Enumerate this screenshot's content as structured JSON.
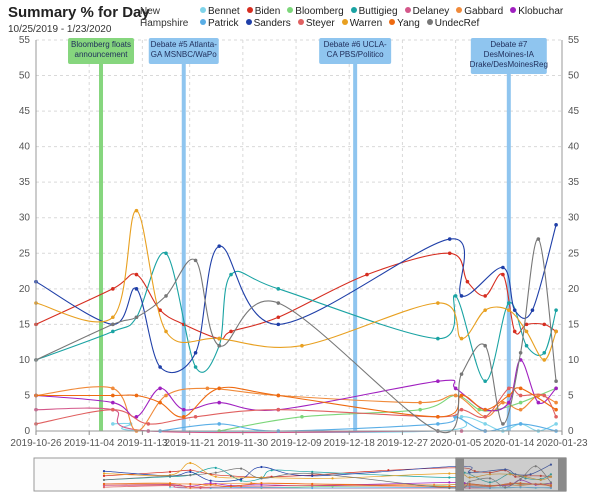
{
  "header": {
    "title": "Summary % for Day",
    "date_range": "10/25/2019 - 1/23/2020",
    "region": "New Hampshire"
  },
  "chart_data": {
    "type": "line",
    "title": "Summary % for Day",
    "subtitle": "10/25/2019 - 1/23/2020",
    "x_type": "date",
    "xlim": [
      "2019-10-26",
      "2020-01-23"
    ],
    "x_ticks": [
      "2019-10-26",
      "2019-11-04",
      "2019-11-13",
      "2019-11-21",
      "2019-11-30",
      "2019-12-09",
      "2019-12-18",
      "2019-12-27",
      "2020-01-05",
      "2020-01-14",
      "2020-01-23"
    ],
    "ylim": [
      0,
      55
    ],
    "y_ticks": [
      0,
      5,
      10,
      15,
      20,
      25,
      30,
      35,
      40,
      45,
      50,
      55
    ],
    "grid": true,
    "legend_position": "top",
    "annotations": [
      {
        "date": "2019-11-06",
        "label_lines": [
          "Bloomberg floats",
          "announcement"
        ],
        "color": "#86d67e"
      },
      {
        "date": "2019-11-20",
        "label_lines": [
          "Debate #5 Atlanta-",
          "GA MSNBC/WaPo"
        ],
        "color": "#8fc5ef"
      },
      {
        "date": "2019-12-19",
        "label_lines": [
          "Debate #6 UCLA-",
          "CA PBS/Politico"
        ],
        "color": "#8fc5ef"
      },
      {
        "date": "2020-01-14",
        "label_lines": [
          "Debate #7",
          "DesMoines-IA",
          "Drake/DesMoinesReg"
        ],
        "color": "#8fc5ef"
      }
    ],
    "series": [
      {
        "name": "Bennet",
        "color": "#7fd4ea",
        "points": [
          [
            "2019-11-08",
            1
          ],
          [
            "2019-11-11",
            1
          ],
          [
            "2019-11-14",
            0
          ],
          [
            "2020-01-02",
            0
          ],
          [
            "2020-01-06",
            2
          ],
          [
            "2020-01-10",
            1
          ],
          [
            "2020-01-13",
            0
          ],
          [
            "2020-01-16",
            1
          ],
          [
            "2020-01-19",
            0
          ],
          [
            "2020-01-22",
            1
          ]
        ]
      },
      {
        "name": "Biden",
        "color": "#d62d20",
        "points": [
          [
            "2019-10-26",
            15
          ],
          [
            "2019-11-08",
            20
          ],
          [
            "2019-11-12",
            22
          ],
          [
            "2019-11-16",
            17
          ],
          [
            "2019-11-20",
            15
          ],
          [
            "2019-11-26",
            13
          ],
          [
            "2019-11-28",
            14
          ],
          [
            "2019-12-06",
            16
          ],
          [
            "2019-12-21",
            22
          ],
          [
            "2020-01-04",
            25
          ],
          [
            "2020-01-07",
            21
          ],
          [
            "2020-01-10",
            19
          ],
          [
            "2020-01-13",
            22
          ],
          [
            "2020-01-15",
            14
          ],
          [
            "2020-01-17",
            15
          ],
          [
            "2020-01-20",
            15
          ],
          [
            "2020-01-22",
            14
          ]
        ]
      },
      {
        "name": "Bloomberg",
        "color": "#7cd67a",
        "points": [
          [
            "2019-11-26",
            0
          ],
          [
            "2019-12-10",
            2
          ],
          [
            "2019-12-30",
            3
          ],
          [
            "2020-01-05",
            5
          ],
          [
            "2020-01-09",
            3
          ],
          [
            "2020-01-12",
            3
          ],
          [
            "2020-01-16",
            4
          ],
          [
            "2020-01-19",
            5
          ],
          [
            "2020-01-22",
            6
          ]
        ]
      },
      {
        "name": "Buttigieg",
        "color": "#1aa3a3",
        "points": [
          [
            "2019-10-26",
            10
          ],
          [
            "2019-11-08",
            14
          ],
          [
            "2019-11-12",
            16
          ],
          [
            "2019-11-17",
            25
          ],
          [
            "2019-11-22",
            9
          ],
          [
            "2019-11-26",
            12
          ],
          [
            "2019-11-28",
            22
          ],
          [
            "2019-12-06",
            20
          ],
          [
            "2020-01-02",
            13
          ],
          [
            "2020-01-05",
            19
          ],
          [
            "2020-01-10",
            7
          ],
          [
            "2020-01-14",
            18
          ],
          [
            "2020-01-17",
            12
          ],
          [
            "2020-01-20",
            11
          ],
          [
            "2020-01-22",
            17
          ]
        ]
      },
      {
        "name": "Delaney",
        "color": "#d4578a",
        "points": [
          [
            "2019-10-26",
            3
          ],
          [
            "2019-11-08",
            3
          ],
          [
            "2019-11-14",
            0
          ],
          [
            "2020-01-02",
            0
          ],
          [
            "2020-01-06",
            0
          ],
          [
            "2020-01-10",
            0
          ]
        ]
      },
      {
        "name": "Gabbard",
        "color": "#f08a3a",
        "points": [
          [
            "2019-10-26",
            5
          ],
          [
            "2019-11-08",
            6
          ],
          [
            "2019-11-12",
            0
          ],
          [
            "2019-11-17",
            5
          ],
          [
            "2019-11-24",
            6
          ],
          [
            "2019-12-06",
            5
          ],
          [
            "2019-12-30",
            4
          ],
          [
            "2020-01-05",
            5
          ],
          [
            "2020-01-10",
            2
          ],
          [
            "2020-01-13",
            4
          ],
          [
            "2020-01-16",
            3
          ],
          [
            "2020-01-19",
            5
          ],
          [
            "2020-01-22",
            4
          ]
        ]
      },
      {
        "name": "Klobuchar",
        "color": "#a020c0",
        "points": [
          [
            "2019-10-26",
            5
          ],
          [
            "2019-11-08",
            4
          ],
          [
            "2019-11-12",
            2
          ],
          [
            "2019-11-16",
            6
          ],
          [
            "2019-11-20",
            3
          ],
          [
            "2019-11-26",
            4
          ],
          [
            "2019-12-06",
            3
          ],
          [
            "2020-01-02",
            7
          ],
          [
            "2020-01-05",
            6
          ],
          [
            "2020-01-10",
            3
          ],
          [
            "2020-01-14",
            4
          ],
          [
            "2020-01-16",
            10
          ],
          [
            "2020-01-19",
            4
          ],
          [
            "2020-01-22",
            6
          ]
        ]
      },
      {
        "name": "Patrick",
        "color": "#5aaee6",
        "points": [
          [
            "2019-11-16",
            0
          ],
          [
            "2019-11-26",
            1
          ],
          [
            "2019-12-06",
            0
          ],
          [
            "2020-01-02",
            1
          ],
          [
            "2020-01-05",
            2
          ],
          [
            "2020-01-10",
            0
          ],
          [
            "2020-01-16",
            1
          ],
          [
            "2020-01-22",
            0
          ]
        ]
      },
      {
        "name": "Sanders",
        "color": "#1f3fa8",
        "points": [
          [
            "2019-10-26",
            21
          ],
          [
            "2019-11-08",
            15
          ],
          [
            "2019-11-12",
            20
          ],
          [
            "2019-11-16",
            9
          ],
          [
            "2019-11-22",
            11
          ],
          [
            "2019-11-26",
            26
          ],
          [
            "2019-12-06",
            15
          ],
          [
            "2020-01-04",
            27
          ],
          [
            "2020-01-06",
            19
          ],
          [
            "2020-01-13",
            23
          ],
          [
            "2020-01-15",
            17
          ],
          [
            "2020-01-18",
            17
          ],
          [
            "2020-01-22",
            29
          ]
        ]
      },
      {
        "name": "Steyer",
        "color": "#e06060",
        "points": [
          [
            "2019-10-26",
            1
          ],
          [
            "2019-11-08",
            3
          ],
          [
            "2019-11-14",
            1
          ],
          [
            "2019-11-22",
            2
          ],
          [
            "2019-12-06",
            3
          ],
          [
            "2020-01-02",
            2
          ],
          [
            "2020-01-06",
            3
          ],
          [
            "2020-01-10",
            2
          ],
          [
            "2020-01-14",
            6
          ],
          [
            "2020-01-16",
            5
          ],
          [
            "2020-01-20",
            5
          ],
          [
            "2020-01-22",
            2
          ]
        ]
      },
      {
        "name": "Warren",
        "color": "#e8a020",
        "points": [
          [
            "2019-10-26",
            18
          ],
          [
            "2019-11-08",
            16
          ],
          [
            "2019-11-12",
            31
          ],
          [
            "2019-11-17",
            14
          ],
          [
            "2019-11-26",
            13
          ],
          [
            "2019-12-10",
            12
          ],
          [
            "2020-01-02",
            18
          ],
          [
            "2020-01-06",
            13
          ],
          [
            "2020-01-10",
            17
          ],
          [
            "2020-01-14",
            17
          ],
          [
            "2020-01-17",
            14
          ],
          [
            "2020-01-20",
            10
          ],
          [
            "2020-01-22",
            14
          ]
        ]
      },
      {
        "name": "Yang",
        "color": "#ee6a10",
        "points": [
          [
            "2019-10-26",
            5
          ],
          [
            "2019-11-08",
            5
          ],
          [
            "2019-11-12",
            5
          ],
          [
            "2019-11-16",
            4
          ],
          [
            "2019-11-20",
            2
          ],
          [
            "2019-11-26",
            6
          ],
          [
            "2019-12-06",
            5
          ],
          [
            "2020-01-02",
            2
          ],
          [
            "2020-01-06",
            5
          ],
          [
            "2020-01-10",
            3
          ],
          [
            "2020-01-14",
            5
          ],
          [
            "2020-01-16",
            6
          ],
          [
            "2020-01-22",
            3
          ]
        ]
      },
      {
        "name": "UndecRef",
        "color": "#777777",
        "points": [
          [
            "2019-10-26",
            10
          ],
          [
            "2019-11-08",
            15
          ],
          [
            "2019-11-12",
            16
          ],
          [
            "2019-11-17",
            19
          ],
          [
            "2019-11-22",
            24
          ],
          [
            "2019-11-26",
            12
          ],
          [
            "2019-12-06",
            18
          ],
          [
            "2020-01-02",
            0
          ],
          [
            "2020-01-06",
            8
          ],
          [
            "2020-01-10",
            12
          ],
          [
            "2020-01-13",
            1
          ],
          [
            "2020-01-16",
            11
          ],
          [
            "2020-01-19",
            27
          ],
          [
            "2020-01-22",
            7
          ]
        ]
      }
    ]
  }
}
